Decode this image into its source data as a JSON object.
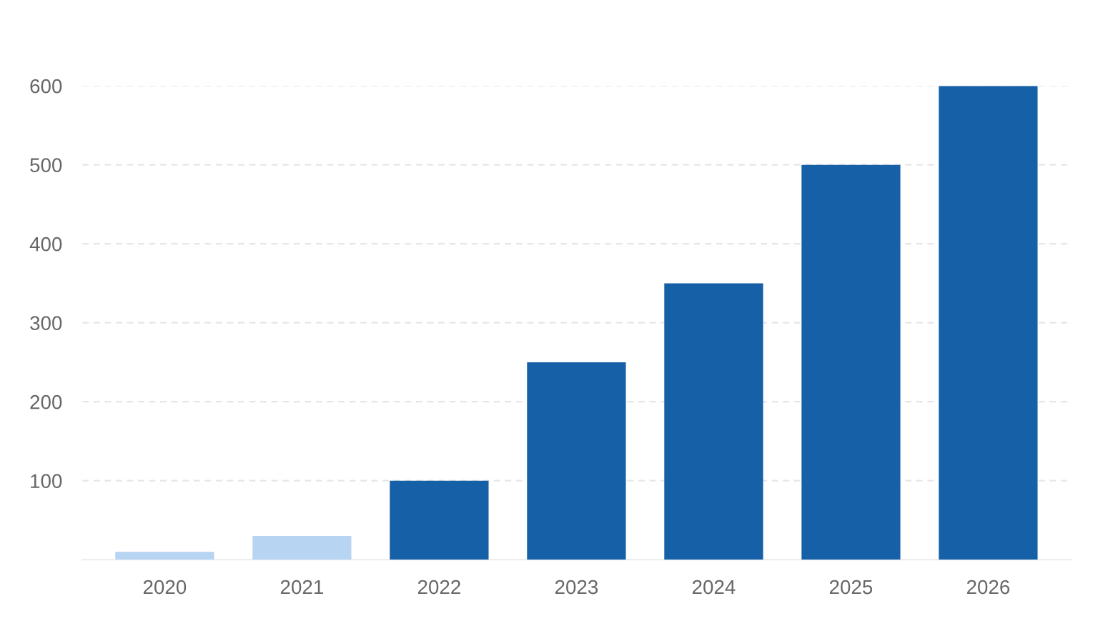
{
  "chart_data": {
    "type": "bar",
    "categories": [
      "2020",
      "2021",
      "2022",
      "2023",
      "2024",
      "2025",
      "2026"
    ],
    "values": [
      10,
      30,
      100,
      250,
      350,
      500,
      600
    ],
    "colors": [
      "#b7d4f3",
      "#b7d4f3",
      "#1660a8",
      "#1660a8",
      "#1660a8",
      "#1660a8",
      "#1660a8"
    ],
    "ylim": [
      0,
      600
    ],
    "yticks": [
      {
        "value": 0,
        "label": null
      },
      100,
      200,
      300,
      400,
      500,
      600
    ],
    "grid": "y"
  }
}
